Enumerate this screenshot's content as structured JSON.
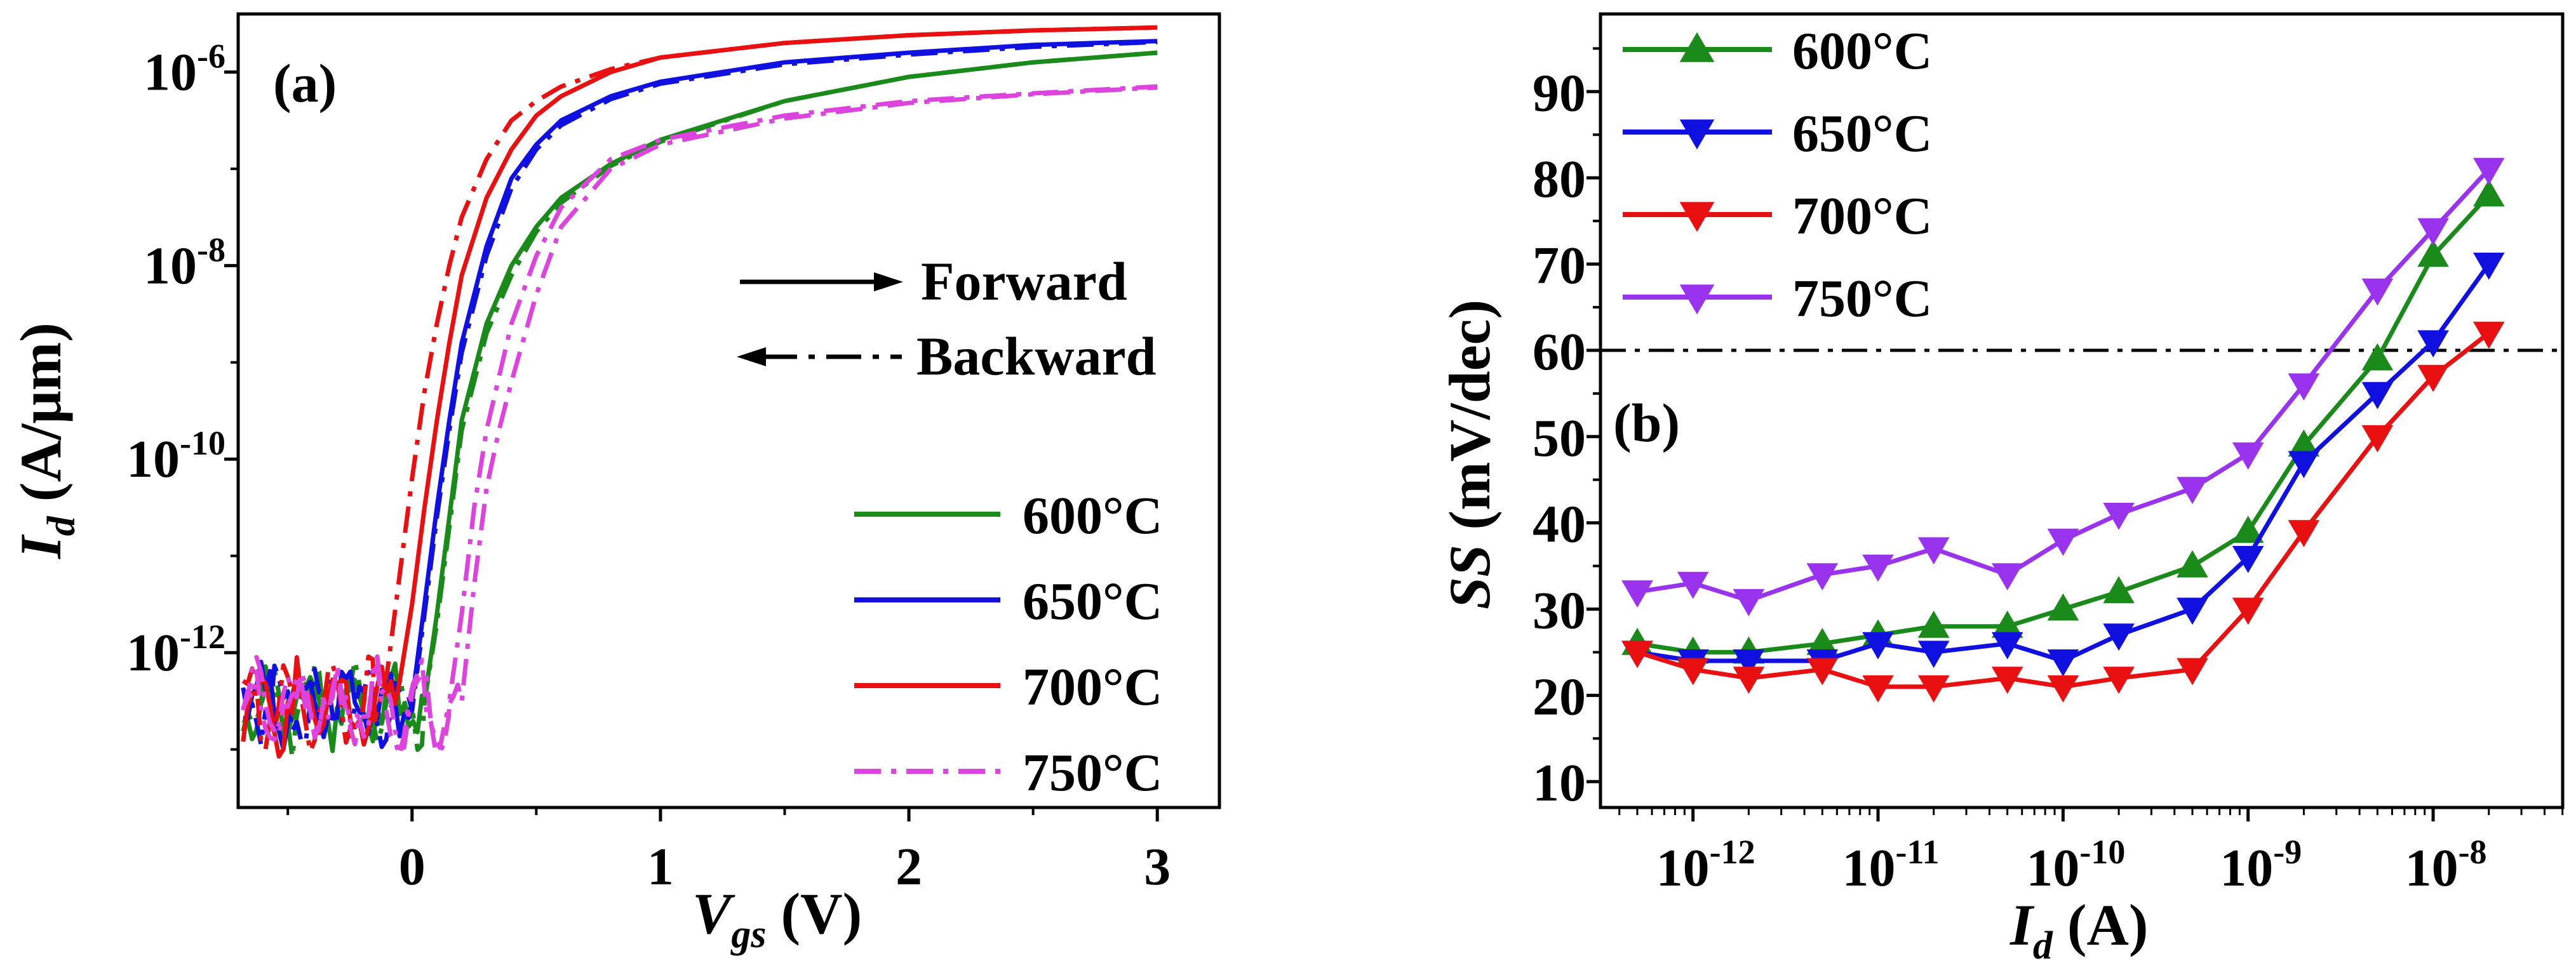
{
  "chart_data": [
    {
      "type": "line",
      "panel_label": "(a)",
      "xlabel": {
        "main": "V",
        "sub": "gs",
        "unit": " (V)"
      },
      "ylabel": {
        "main": "I",
        "sub": "d",
        "unit": " (A/μm)"
      },
      "xlim": [
        -0.7,
        3.25
      ],
      "ylim": [
        -13.6,
        -5.4
      ],
      "y_scale": "log10",
      "x_ticks": [
        0,
        1,
        2,
        3
      ],
      "x_tick_labels": [
        "0",
        "1",
        "2",
        "3"
      ],
      "y_ticks": [
        -12,
        -10,
        -8,
        -6
      ],
      "y_tick_labels": [
        {
          "base": "10",
          "exp": "-12"
        },
        {
          "base": "10",
          "exp": "-10"
        },
        {
          "base": "10",
          "exp": "-8"
        },
        {
          "base": "10",
          "exp": "-6"
        }
      ],
      "sweep_legend": {
        "forward": "Forward",
        "backward": "Backward"
      },
      "legend_position": "lower-right",
      "series": [
        {
          "name": "600°C",
          "color": "#1a8a1a",
          "style": "solid",
          "forward": {
            "x": [
              0.05,
              0.1,
              0.15,
              0.2,
              0.3,
              0.4,
              0.5,
              0.6,
              0.8,
              1.0,
              1.5,
              2.0,
              2.5,
              3.0
            ],
            "log_y": [
              -12.5,
              -11.6,
              -10.6,
              -9.6,
              -8.6,
              -8.0,
              -7.6,
              -7.3,
              -6.95,
              -6.7,
              -6.3,
              -6.05,
              -5.9,
              -5.8
            ]
          },
          "backward": {
            "x": [
              0.05,
              0.1,
              0.15,
              0.2,
              0.3,
              0.4,
              0.5,
              0.6,
              0.8,
              1.0,
              1.5,
              2.0,
              2.5,
              3.0
            ],
            "log_y": [
              -12.5,
              -11.7,
              -10.7,
              -9.7,
              -8.7,
              -8.1,
              -7.65,
              -7.35,
              -6.97,
              -6.72,
              -6.3,
              -6.05,
              -5.9,
              -5.8
            ]
          }
        },
        {
          "name": "650°C",
          "color": "#1010e0",
          "style": "solid",
          "forward": {
            "x": [
              0.0,
              0.05,
              0.1,
              0.15,
              0.2,
              0.3,
              0.4,
              0.5,
              0.6,
              0.8,
              1.0,
              1.5,
              2.0,
              2.5,
              3.0
            ],
            "log_y": [
              -12.5,
              -11.5,
              -10.5,
              -9.6,
              -8.8,
              -7.8,
              -7.1,
              -6.75,
              -6.5,
              -6.25,
              -6.1,
              -5.9,
              -5.8,
              -5.72,
              -5.68
            ]
          },
          "backward": {
            "x": [
              0.0,
              0.05,
              0.1,
              0.15,
              0.2,
              0.3,
              0.4,
              0.5,
              0.6,
              0.8,
              1.0,
              1.5,
              2.0,
              2.5,
              3.0
            ],
            "log_y": [
              -12.6,
              -11.6,
              -10.6,
              -9.7,
              -8.9,
              -7.9,
              -7.2,
              -6.8,
              -6.55,
              -6.28,
              -6.12,
              -5.92,
              -5.82,
              -5.74,
              -5.69
            ]
          }
        },
        {
          "name": "700°C",
          "color": "#e81010",
          "style": "solid",
          "forward": {
            "x": [
              -0.05,
              0.0,
              0.05,
              0.1,
              0.15,
              0.2,
              0.3,
              0.4,
              0.5,
              0.6,
              0.8,
              1.0,
              1.5,
              2.0,
              2.5,
              3.0
            ],
            "log_y": [
              -12.3,
              -11.5,
              -10.5,
              -9.6,
              -8.8,
              -8.1,
              -7.3,
              -6.8,
              -6.45,
              -6.25,
              -6.0,
              -5.85,
              -5.7,
              -5.62,
              -5.57,
              -5.54
            ]
          },
          "backward": {
            "x": [
              -0.15,
              -0.1,
              -0.05,
              0.0,
              0.05,
              0.1,
              0.15,
              0.2,
              0.3,
              0.4,
              0.5,
              0.6,
              0.8,
              1.0,
              1.5,
              2.0,
              2.5,
              3.0
            ],
            "log_y": [
              -12.7,
              -12.2,
              -11.2,
              -10.2,
              -9.3,
              -8.6,
              -8.0,
              -7.5,
              -6.9,
              -6.5,
              -6.3,
              -6.15,
              -5.97,
              -5.85,
              -5.7,
              -5.62,
              -5.57,
              -5.54
            ]
          }
        },
        {
          "name": "750°C",
          "color": "#dd44dd",
          "style": "dashdot",
          "forward": {
            "x": [
              0.15,
              0.2,
              0.25,
              0.3,
              0.4,
              0.5,
              0.6,
              0.8,
              1.0,
              1.5,
              2.0,
              2.5,
              3.0
            ],
            "log_y": [
              -12.5,
              -11.6,
              -10.5,
              -9.7,
              -8.6,
              -7.9,
              -7.4,
              -6.9,
              -6.7,
              -6.45,
              -6.3,
              -6.22,
              -6.15
            ]
          },
          "backward": {
            "x": [
              0.2,
              0.25,
              0.3,
              0.35,
              0.4,
              0.5,
              0.6,
              0.8,
              1.0,
              1.5,
              2.0,
              2.5,
              3.0
            ],
            "log_y": [
              -12.5,
              -11.3,
              -10.3,
              -9.7,
              -9.2,
              -8.3,
              -7.6,
              -7.0,
              -6.75,
              -6.48,
              -6.32,
              -6.23,
              -6.16
            ]
          }
        }
      ]
    },
    {
      "type": "line",
      "panel_label": "(b)",
      "xlabel": {
        "main": "I",
        "sub": "d",
        "unit": " (A)"
      },
      "ylabel": {
        "main": "SS",
        "unit": " (mV/dec)"
      },
      "x_scale": "log10",
      "xlim": [
        -12.5,
        -7.3
      ],
      "ylim": [
        7,
        99
      ],
      "x_ticks": [
        -12,
        -11,
        -10,
        -9,
        -8
      ],
      "x_tick_labels": [
        {
          "base": "10",
          "exp": "-12"
        },
        {
          "base": "10",
          "exp": "-11"
        },
        {
          "base": "10",
          "exp": "-10"
        },
        {
          "base": "10",
          "exp": "-9"
        },
        {
          "base": "10",
          "exp": "-8"
        }
      ],
      "y_ticks": [
        10,
        20,
        30,
        40,
        50,
        60,
        70,
        80,
        90
      ],
      "y_tick_labels": [
        "10",
        "20",
        "30",
        "40",
        "50",
        "60",
        "70",
        "80",
        "90"
      ],
      "reference_line": {
        "y": 60,
        "style": "dashdot"
      },
      "legend_position": "top-left",
      "x_log_values": [
        -12.301,
        -12.0,
        -11.699,
        -11.301,
        -11.0,
        -10.699,
        -10.301,
        -10.0,
        -9.699,
        -9.301,
        -9.0,
        -8.699,
        -8.301,
        -8.0,
        -7.699
      ],
      "series": [
        {
          "name": "600°C",
          "color": "#1a8a1a",
          "marker": "triangle-up",
          "values": [
            26,
            25,
            25,
            26,
            27,
            28,
            28,
            30,
            32,
            35,
            39,
            49,
            59,
            71,
            78
          ]
        },
        {
          "name": "650°C",
          "color": "#1010e0",
          "marker": "triangle-down",
          "values": [
            25,
            24,
            24,
            24,
            26,
            25,
            26,
            24,
            27,
            30,
            36,
            47,
            55,
            61,
            70
          ]
        },
        {
          "name": "700°C",
          "color": "#e81010",
          "marker": "triangle-down",
          "values": [
            25,
            23,
            22,
            23,
            21,
            21,
            22,
            21,
            22,
            23,
            30,
            39,
            50,
            57,
            62
          ]
        },
        {
          "name": "750°C",
          "color": "#9933ee",
          "marker": "triangle-down",
          "values": [
            32,
            33,
            31,
            34,
            35,
            37,
            34,
            38,
            41,
            44,
            48,
            56,
            67,
            74,
            81
          ]
        }
      ]
    }
  ]
}
